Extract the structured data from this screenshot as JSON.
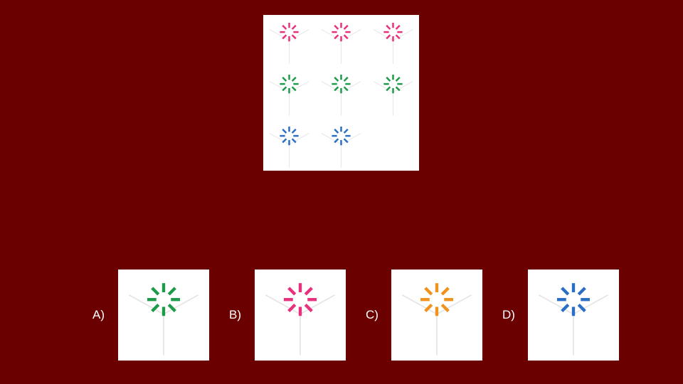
{
  "colors": {
    "background": "#6b0000",
    "panel": "#ffffff",
    "frame_lines": "#e6e6e6",
    "pink": "#e8307c",
    "green": "#1e9a4a",
    "blue": "#2b6fc4",
    "orange": "#f0921e"
  },
  "matrix": {
    "rows": [
      [
        "pink",
        "pink",
        "pink"
      ],
      [
        "green",
        "green",
        "green"
      ],
      [
        "blue",
        "blue",
        null
      ]
    ]
  },
  "options": [
    {
      "label": "A)",
      "color": "green"
    },
    {
      "label": "B)",
      "color": "pink"
    },
    {
      "label": "C)",
      "color": "orange"
    },
    {
      "label": "D)",
      "color": "blue"
    }
  ]
}
